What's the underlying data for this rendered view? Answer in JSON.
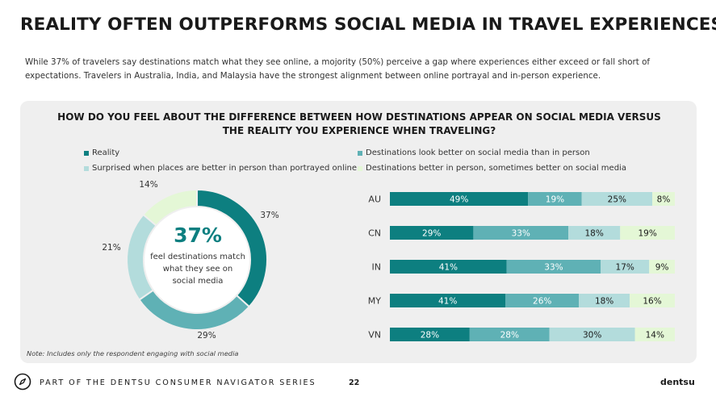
{
  "header": {
    "title": "REALITY OFTEN OUTPERFORMS SOCIAL MEDIA IN TRAVEL EXPERIENCES",
    "subtitle": "While 37% of travelers say destinations match what they see online, a mojority (50%) perceive a gap where experiences either exceed or fall short of expectations. Travelers in Australia, India, and Malaysia have the strongest alignment between online portrayal and in-person experience."
  },
  "chart_data": [
    {
      "type": "pie",
      "title": "HOW DO YOU FEEL ABOUT THE DIFFERENCE BETWEEN HOW DESTINATIONS APPEAR ON SOCIAL MEDIA VERSUS THE REALITY YOU EXPERIENCE WHEN TRAVELING?",
      "legend": [
        {
          "name": "Reality",
          "color": "#0d7f80"
        },
        {
          "name": "Destinations look better on social media than in person",
          "color": "#5fb1b5"
        },
        {
          "name": "Surprised when places are better in person than portrayed online",
          "color": "#b3dcdc"
        },
        {
          "name": "Destinations better in person, sometimes better on social media",
          "color": "#e4f7d6"
        }
      ],
      "categories": [
        "Reality",
        "Destinations look better on social media than in person",
        "Surprised when places are better in person than portrayed online",
        "Destinations better in person, sometimes better on social media"
      ],
      "values": [
        37,
        29,
        21,
        14
      ],
      "labels": [
        "37%",
        "29%",
        "21%",
        "14%"
      ],
      "center_value": "37%",
      "center_text": "feel destinations match what they see on social media"
    },
    {
      "type": "bar",
      "orientation": "horizontal",
      "stacked": true,
      "categories": [
        "AU",
        "CN",
        "IN",
        "MY",
        "VN"
      ],
      "series": [
        {
          "name": "Reality",
          "color": "#0d7f80",
          "values": [
            49,
            29,
            41,
            41,
            28
          ],
          "labels": [
            "49%",
            "29%",
            "41%",
            "41%",
            "28%"
          ]
        },
        {
          "name": "Destinations look better on social media than in person",
          "color": "#5fb1b5",
          "values": [
            19,
            33,
            33,
            26,
            28
          ],
          "labels": [
            "19%",
            "33%",
            "33%",
            "26%",
            "28%"
          ]
        },
        {
          "name": "Surprised when places are better in person than portrayed online",
          "color": "#b3dcdc",
          "values": [
            25,
            18,
            17,
            18,
            30
          ],
          "labels": [
            "25%",
            "18%",
            "17%",
            "18%",
            "30%"
          ]
        },
        {
          "name": "Destinations better in person, sometimes better on social media",
          "color": "#e4f7d6",
          "values": [
            8,
            19,
            9,
            16,
            14
          ],
          "labels": [
            "8%",
            "19%",
            "9%",
            "16%",
            "14%"
          ]
        }
      ]
    }
  ],
  "note": "Note: Includes only the respondent engaging with social media",
  "footer": {
    "series": "PART OF THE DENTSU CONSUMER NAVIGATOR SERIES",
    "page": "22",
    "brand": "dentsu",
    "icon": "compass-icon"
  }
}
